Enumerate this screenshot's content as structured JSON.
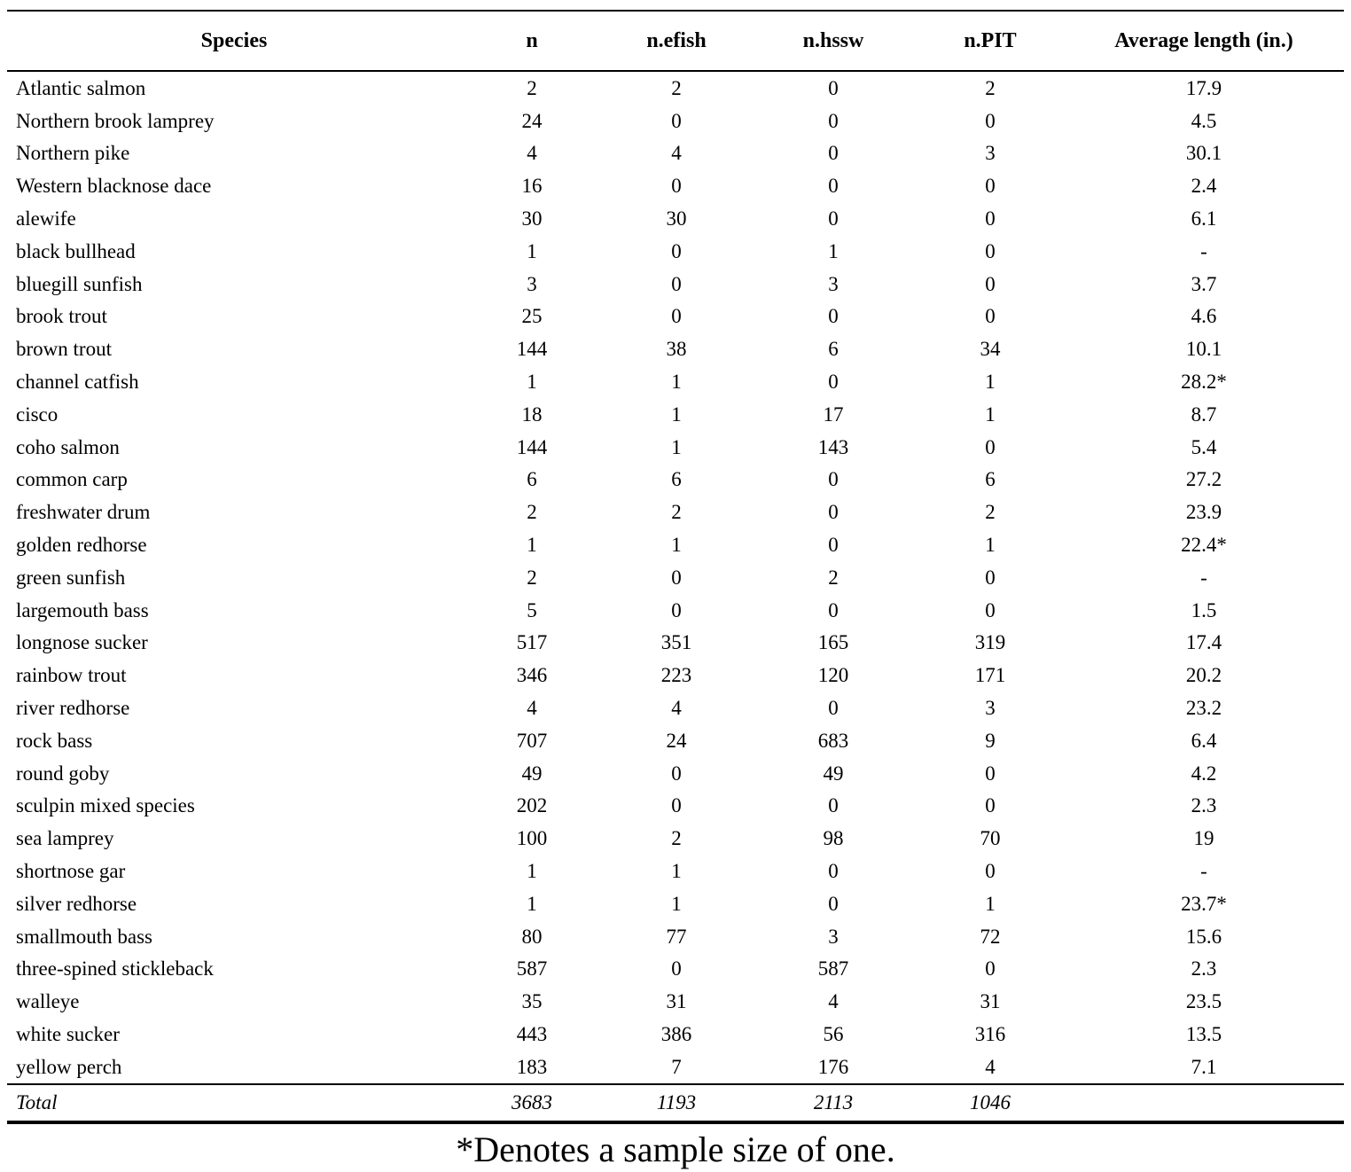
{
  "table": {
    "columns": [
      "Species",
      "n",
      "n.efish",
      "n.hssw",
      "n.PIT",
      "Average length (in.)"
    ],
    "rows": [
      [
        "Atlantic salmon",
        "2",
        "2",
        "0",
        "2",
        "17.9"
      ],
      [
        "Northern brook lamprey",
        "24",
        "0",
        "0",
        "0",
        "4.5"
      ],
      [
        "Northern pike",
        "4",
        "4",
        "0",
        "3",
        "30.1"
      ],
      [
        "Western blacknose dace",
        "16",
        "0",
        "0",
        "0",
        "2.4"
      ],
      [
        "alewife",
        "30",
        "30",
        "0",
        "0",
        "6.1"
      ],
      [
        "black bullhead",
        "1",
        "0",
        "1",
        "0",
        "-"
      ],
      [
        "bluegill sunfish",
        "3",
        "0",
        "3",
        "0",
        "3.7"
      ],
      [
        "brook trout",
        "25",
        "0",
        "0",
        "0",
        "4.6"
      ],
      [
        "brown trout",
        "144",
        "38",
        "6",
        "34",
        "10.1"
      ],
      [
        "channel catfish",
        "1",
        "1",
        "0",
        "1",
        "28.2*"
      ],
      [
        "cisco",
        "18",
        "1",
        "17",
        "1",
        "8.7"
      ],
      [
        "coho salmon",
        "144",
        "1",
        "143",
        "0",
        "5.4"
      ],
      [
        "common carp",
        "6",
        "6",
        "0",
        "6",
        "27.2"
      ],
      [
        "freshwater drum",
        "2",
        "2",
        "0",
        "2",
        "23.9"
      ],
      [
        "golden redhorse",
        "1",
        "1",
        "0",
        "1",
        "22.4*"
      ],
      [
        "green sunfish",
        "2",
        "0",
        "2",
        "0",
        "-"
      ],
      [
        "largemouth bass",
        "5",
        "0",
        "0",
        "0",
        "1.5"
      ],
      [
        "longnose sucker",
        "517",
        "351",
        "165",
        "319",
        "17.4"
      ],
      [
        "rainbow trout",
        "346",
        "223",
        "120",
        "171",
        "20.2"
      ],
      [
        "river redhorse",
        "4",
        "4",
        "0",
        "3",
        "23.2"
      ],
      [
        "rock bass",
        "707",
        "24",
        "683",
        "9",
        "6.4"
      ],
      [
        "round goby",
        "49",
        "0",
        "49",
        "0",
        "4.2"
      ],
      [
        "sculpin mixed species",
        "202",
        "0",
        "0",
        "0",
        "2.3"
      ],
      [
        "sea lamprey",
        "100",
        "2",
        "98",
        "70",
        "19"
      ],
      [
        "shortnose gar",
        "1",
        "1",
        "0",
        "0",
        "-"
      ],
      [
        "silver redhorse",
        "1",
        "1",
        "0",
        "1",
        "23.7*"
      ],
      [
        "smallmouth bass",
        "80",
        "77",
        "3",
        "72",
        "15.6"
      ],
      [
        "three-spined stickleback",
        "587",
        "0",
        "587",
        "0",
        "2.3"
      ],
      [
        "walleye",
        "35",
        "31",
        "4",
        "31",
        "23.5"
      ],
      [
        "white sucker",
        "443",
        "386",
        "56",
        "316",
        "13.5"
      ],
      [
        "yellow perch",
        "183",
        "7",
        "176",
        "4",
        "7.1"
      ]
    ],
    "total_row": [
      "Total",
      "3683",
      "1193",
      "2113",
      "1046",
      ""
    ]
  },
  "footnote": "*Denotes a sample size of one."
}
